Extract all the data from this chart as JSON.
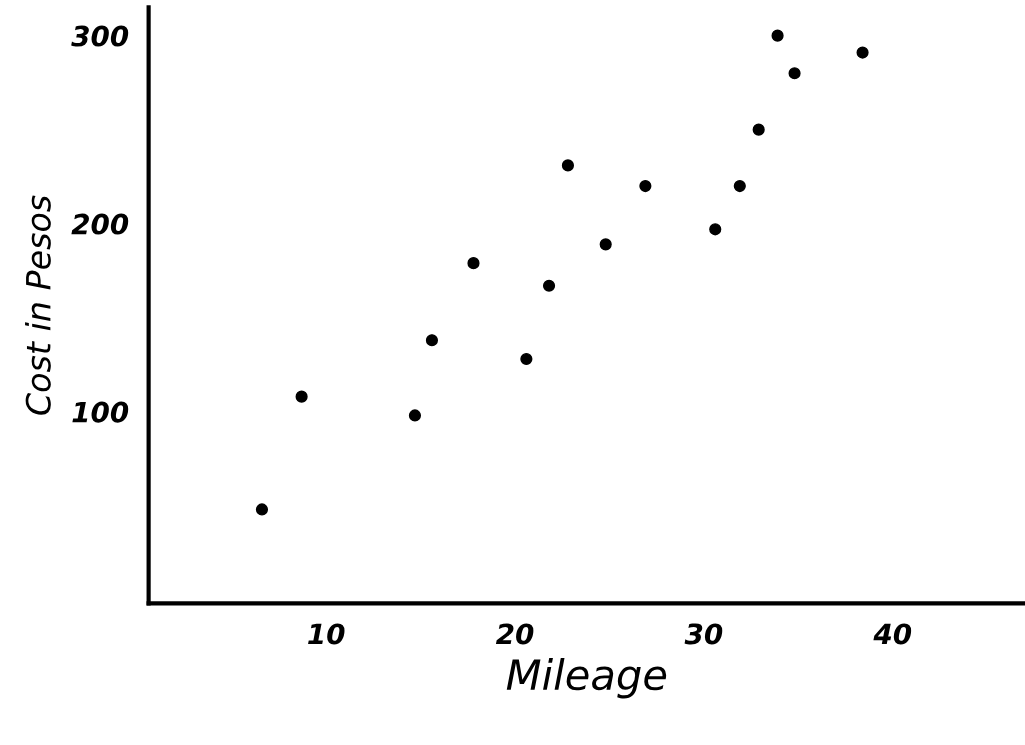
{
  "chart_data": {
    "type": "scatter",
    "xlabel": "Mileage",
    "ylabel": "Cost in Pesos",
    "x": [
      6.6,
      8.7,
      14.7,
      15.6,
      17.8,
      20.6,
      21.8,
      22.8,
      24.8,
      26.9,
      30.6,
      31.9,
      32.9,
      33.9,
      34.8,
      38.4
    ],
    "values": [
      48,
      108,
      98,
      138,
      179,
      128,
      167,
      231,
      189,
      220,
      197,
      220,
      250,
      300,
      280,
      291
    ],
    "color": "#000000",
    "marker": "circle",
    "xlim": [
      0.6,
      47
    ],
    "xticks": [
      10,
      20,
      30,
      40
    ],
    "ylim": [
      -2,
      315
    ],
    "yticks": [
      100,
      200,
      300
    ],
    "grid": false,
    "legend": false
  }
}
